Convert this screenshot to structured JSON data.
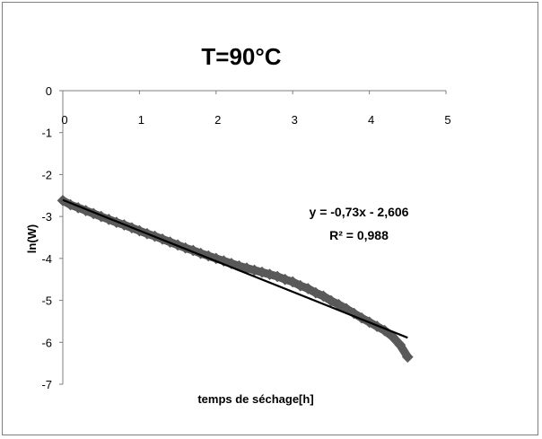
{
  "chart_data": {
    "type": "scatter",
    "title": "T=90°C",
    "xlabel": "temps de séchage[h]",
    "ylabel": "ln(W)",
    "xlim": [
      0,
      5
    ],
    "ylim": [
      -7,
      0
    ],
    "xticks": [
      0,
      1,
      2,
      3,
      4,
      5
    ],
    "yticks": [
      0,
      -1,
      -2,
      -3,
      -4,
      -5,
      -6,
      -7
    ],
    "grid": false,
    "legend": "none",
    "series": [
      {
        "color": "#595959",
        "x": [
          0.0,
          0.1,
          0.2,
          0.3,
          0.4,
          0.5,
          0.6,
          0.7,
          0.8,
          0.9,
          1.0,
          1.1,
          1.2,
          1.3,
          1.4,
          1.5,
          1.6,
          1.7,
          1.8,
          1.9,
          2.0,
          2.1,
          2.2,
          2.3,
          2.4,
          2.5,
          2.6,
          2.7,
          2.8,
          2.9,
          3.0,
          3.1,
          3.2,
          3.3,
          3.4,
          3.5,
          3.6,
          3.7,
          3.8,
          3.9,
          4.0,
          4.1,
          4.2,
          4.3,
          4.4,
          4.5
        ],
        "values": [
          -2.62,
          -2.72,
          -2.79,
          -2.86,
          -2.93,
          -3.0,
          -3.07,
          -3.14,
          -3.2,
          -3.27,
          -3.34,
          -3.41,
          -3.47,
          -3.54,
          -3.61,
          -3.68,
          -3.75,
          -3.81,
          -3.88,
          -3.94,
          -4.0,
          -4.06,
          -4.12,
          -4.18,
          -4.23,
          -4.28,
          -4.33,
          -4.38,
          -4.43,
          -4.5,
          -4.56,
          -4.65,
          -4.72,
          -4.82,
          -4.9,
          -5.01,
          -5.1,
          -5.2,
          -5.31,
          -5.42,
          -5.52,
          -5.62,
          -5.72,
          -5.86,
          -6.06,
          -6.35
        ]
      }
    ],
    "trendline": {
      "type": "linear",
      "slope": -0.73,
      "intercept": -2.606,
      "x_range": [
        0,
        4.5
      ],
      "color": "#000000",
      "equation_label": "y = -0,73x - 2,606",
      "r2_label": "R² = 0,988"
    }
  }
}
